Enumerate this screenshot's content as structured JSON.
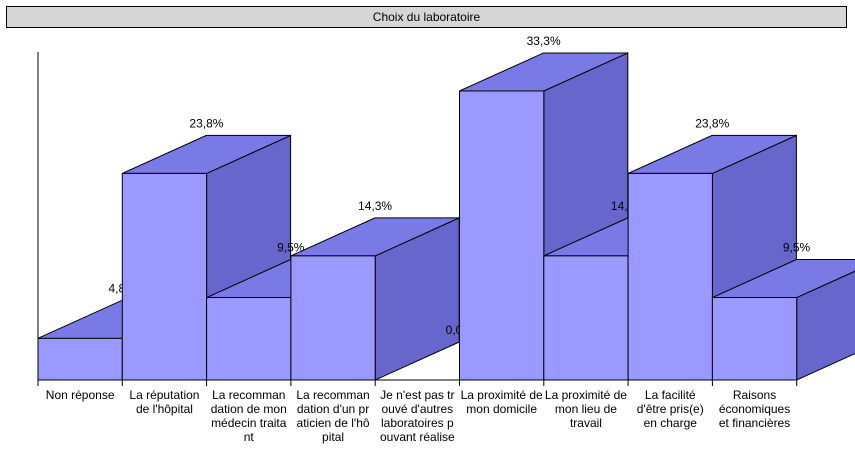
{
  "chart_data": {
    "type": "bar",
    "title": "Choix du laboratoire",
    "categories": [
      [
        "Non réponse"
      ],
      [
        "La réputation",
        "de l'hôpital"
      ],
      [
        "La recomman",
        "dation de mon",
        "médecin traita",
        "nt"
      ],
      [
        "La recomman",
        "dation d'un pr",
        "aticien de l'hô",
        "pital"
      ],
      [
        "Je n'est pas tr",
        "ouvé d'autres",
        "laboratoires p",
        "ouvant réalise"
      ],
      [
        "La proximité de",
        "mon domicile"
      ],
      [
        "La proximité de",
        "mon lieu de",
        "travail"
      ],
      [
        "La facilité",
        "d'être pris(e)",
        "en charge"
      ],
      [
        "Raisons",
        "économiques",
        "et financières"
      ]
    ],
    "values": [
      4.8,
      23.8,
      9.5,
      14.3,
      0.0,
      33.3,
      14.3,
      23.8,
      9.5
    ],
    "value_labels": [
      "4,8%",
      "23,8%",
      "9,5%",
      "14,3%",
      "0,0%",
      "33,3%",
      "14,3%",
      "23,8%",
      "9,5%"
    ],
    "ylim": [
      0,
      35
    ],
    "grid": false,
    "legend": "none",
    "colors": {
      "front": "#9999ff",
      "top": "#7a7ae6",
      "side": "#6666cc",
      "outline": "#000000",
      "title_bg": "#d6d6d6"
    }
  }
}
